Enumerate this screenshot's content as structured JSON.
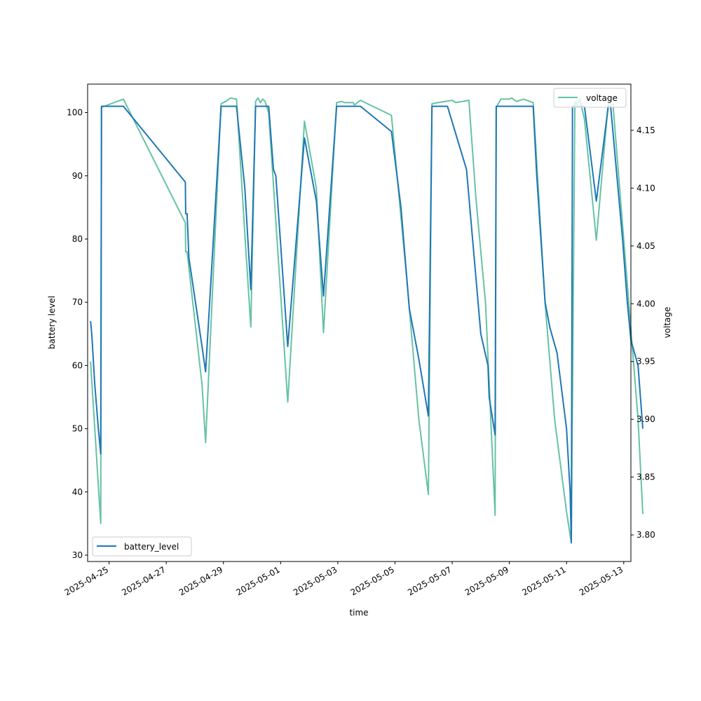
{
  "chart_data": {
    "type": "line",
    "title": "",
    "xlabel": "time",
    "ylabel_left": "battery level",
    "ylabel_right": "voltage",
    "x_type": "date",
    "xlim": [
      "2025-04-24 06:00",
      "2025-05-13 06:00"
    ],
    "ylim_left": [
      29,
      104.5
    ],
    "ylim_right": [
      3.777,
      4.19
    ],
    "x_ticks": [
      "2025-04-25",
      "2025-04-27",
      "2025-04-29",
      "2025-05-01",
      "2025-05-03",
      "2025-05-05",
      "2025-05-07",
      "2025-05-09",
      "2025-05-11",
      "2025-05-13"
    ],
    "y_ticks_left": [
      30,
      40,
      50,
      60,
      70,
      80,
      90,
      100
    ],
    "y_ticks_right": [
      "3.80",
      "3.85",
      "3.90",
      "3.95",
      "4.00",
      "4.05",
      "4.10",
      "4.15"
    ],
    "series": [
      {
        "name": "battery_level",
        "axis": "left",
        "color": "#1f77b4",
        "legend_position": "lower-left",
        "points": [
          [
            "2025-04-24 08:30",
            67
          ],
          [
            "2025-04-24 09:30",
            65
          ],
          [
            "2025-04-24 12:00",
            57
          ],
          [
            "2025-04-24 15:00",
            50
          ],
          [
            "2025-04-24 17:00",
            46
          ],
          [
            "2025-04-24 17:40",
            101
          ],
          [
            "2025-04-25 12:00",
            101
          ],
          [
            "2025-04-27 16:00",
            89
          ],
          [
            "2025-04-27 16:20",
            84
          ],
          [
            "2025-04-27 17:30",
            84
          ],
          [
            "2025-04-27 19:00",
            77
          ],
          [
            "2025-04-28 06:00",
            63
          ],
          [
            "2025-04-28 09:00",
            59
          ],
          [
            "2025-04-28 18:00",
            88
          ],
          [
            "2025-04-28 22:00",
            101
          ],
          [
            "2025-04-29 11:00",
            101
          ],
          [
            "2025-04-29 18:00",
            88
          ],
          [
            "2025-04-29 23:00",
            72
          ],
          [
            "2025-04-30 03:00",
            101
          ],
          [
            "2025-04-30 14:00",
            101
          ],
          [
            "2025-04-30 18:00",
            91
          ],
          [
            "2025-04-30 20:00",
            90
          ],
          [
            "2025-05-01 06:00",
            63
          ],
          [
            "2025-05-01 20:00",
            96
          ],
          [
            "2025-05-02 06:00",
            86
          ],
          [
            "2025-05-02 12:00",
            71
          ],
          [
            "2025-05-02 23:00",
            101
          ],
          [
            "2025-05-03 19:00",
            101
          ],
          [
            "2025-05-04 21:00",
            97
          ],
          [
            "2025-05-05 05:00",
            85
          ],
          [
            "2025-05-05 12:00",
            69
          ],
          [
            "2025-05-05 20:00",
            61
          ],
          [
            "2025-05-06 04:00",
            52
          ],
          [
            "2025-05-06 07:00",
            101
          ],
          [
            "2025-05-06 20:00",
            101
          ],
          [
            "2025-05-07 12:00",
            91
          ],
          [
            "2025-05-07 18:00",
            78
          ],
          [
            "2025-05-08 00:00",
            65
          ],
          [
            "2025-05-08 06:00",
            60
          ],
          [
            "2025-05-08 07:00",
            55
          ],
          [
            "2025-05-08 12:00",
            49
          ],
          [
            "2025-05-08 13:00",
            101
          ],
          [
            "2025-05-09 20:00",
            101
          ],
          [
            "2025-05-09 23:00",
            90
          ],
          [
            "2025-05-10 06:00",
            70
          ],
          [
            "2025-05-10 10:00",
            66
          ],
          [
            "2025-05-10 16:00",
            62
          ],
          [
            "2025-05-11 00:00",
            50
          ],
          [
            "2025-05-11 03:00",
            40
          ],
          [
            "2025-05-11 04:00",
            32
          ],
          [
            "2025-05-11 05:00",
            101
          ],
          [
            "2025-05-11 15:00",
            101
          ],
          [
            "2025-05-12 01:00",
            86
          ],
          [
            "2025-05-12 11:00",
            101
          ],
          [
            "2025-05-12 13:00",
            101
          ],
          [
            "2025-05-12 23:00",
            80
          ],
          [
            "2025-05-13 03:00",
            70
          ],
          [
            "2025-05-13 06:00",
            64
          ],
          [
            "2025-05-13 12:00",
            60
          ],
          [
            "2025-05-13 16:00",
            50
          ]
        ]
      },
      {
        "name": "voltage",
        "axis": "right",
        "color": "#66c2a5",
        "legend_position": "upper-right",
        "points": [
          [
            "2025-04-24 08:30",
            3.95
          ],
          [
            "2025-04-24 17:00",
            3.81
          ],
          [
            "2025-04-24 17:40",
            4.17
          ],
          [
            "2025-04-25 12:00",
            4.177
          ],
          [
            "2025-04-27 16:00",
            4.07
          ],
          [
            "2025-04-27 16:20",
            4.045
          ],
          [
            "2025-04-27 17:30",
            4.045
          ],
          [
            "2025-04-28 06:00",
            3.93
          ],
          [
            "2025-04-28 09:00",
            3.88
          ],
          [
            "2025-04-28 22:00",
            4.173
          ],
          [
            "2025-04-29 02:00",
            4.175
          ],
          [
            "2025-04-29 06:00",
            4.178
          ],
          [
            "2025-04-29 11:00",
            4.177
          ],
          [
            "2025-04-29 18:00",
            4.06
          ],
          [
            "2025-04-29 23:00",
            3.98
          ],
          [
            "2025-04-30 03:00",
            4.175
          ],
          [
            "2025-04-30 05:00",
            4.178
          ],
          [
            "2025-04-30 07:00",
            4.174
          ],
          [
            "2025-04-30 09:00",
            4.177
          ],
          [
            "2025-04-30 11:00",
            4.175
          ],
          [
            "2025-04-30 14:00",
            4.165
          ],
          [
            "2025-05-01 06:00",
            3.915
          ],
          [
            "2025-05-01 20:00",
            4.158
          ],
          [
            "2025-05-02 06:00",
            4.1
          ],
          [
            "2025-05-02 12:00",
            3.975
          ],
          [
            "2025-05-02 23:00",
            4.174
          ],
          [
            "2025-05-03 03:00",
            4.175
          ],
          [
            "2025-05-03 06:00",
            4.174
          ],
          [
            "2025-05-03 13:00",
            4.174
          ],
          [
            "2025-05-03 14:00",
            4.172
          ],
          [
            "2025-05-03 19:00",
            4.176
          ],
          [
            "2025-05-04 21:00",
            4.163
          ],
          [
            "2025-05-05 10:00",
            4.02
          ],
          [
            "2025-05-05 20:00",
            3.9
          ],
          [
            "2025-05-06 04:00",
            3.835
          ],
          [
            "2025-05-06 07:00",
            4.173
          ],
          [
            "2025-05-06 12:00",
            4.174
          ],
          [
            "2025-05-07 00:00",
            4.176
          ],
          [
            "2025-05-07 03:00",
            4.174
          ],
          [
            "2025-05-07 14:00",
            4.176
          ],
          [
            "2025-05-07 20:00",
            4.09
          ],
          [
            "2025-05-08 04:00",
            4.0
          ],
          [
            "2025-05-08 12:00",
            3.817
          ],
          [
            "2025-05-08 13:00",
            4.17
          ],
          [
            "2025-05-08 17:00",
            4.177
          ],
          [
            "2025-05-09 00:00",
            4.177
          ],
          [
            "2025-05-09 02:00",
            4.178
          ],
          [
            "2025-05-09 06:00",
            4.175
          ],
          [
            "2025-05-09 12:00",
            4.177
          ],
          [
            "2025-05-09 20:00",
            4.174
          ],
          [
            "2025-05-10 06:00",
            4.0
          ],
          [
            "2025-05-10 14:00",
            3.9
          ],
          [
            "2025-05-11 00:00",
            3.82
          ],
          [
            "2025-05-11 04:00",
            3.793
          ],
          [
            "2025-05-11 07:00",
            4.175
          ],
          [
            "2025-05-11 09:00",
            4.172
          ],
          [
            "2025-05-11 11:00",
            4.177
          ],
          [
            "2025-05-11 15:00",
            4.16
          ],
          [
            "2025-05-12 01:00",
            4.055
          ],
          [
            "2025-05-12 11:00",
            4.174
          ],
          [
            "2025-05-12 15:00",
            4.172
          ],
          [
            "2025-05-13 12:00",
            3.9
          ],
          [
            "2025-05-13 16:00",
            3.818
          ]
        ]
      }
    ]
  }
}
